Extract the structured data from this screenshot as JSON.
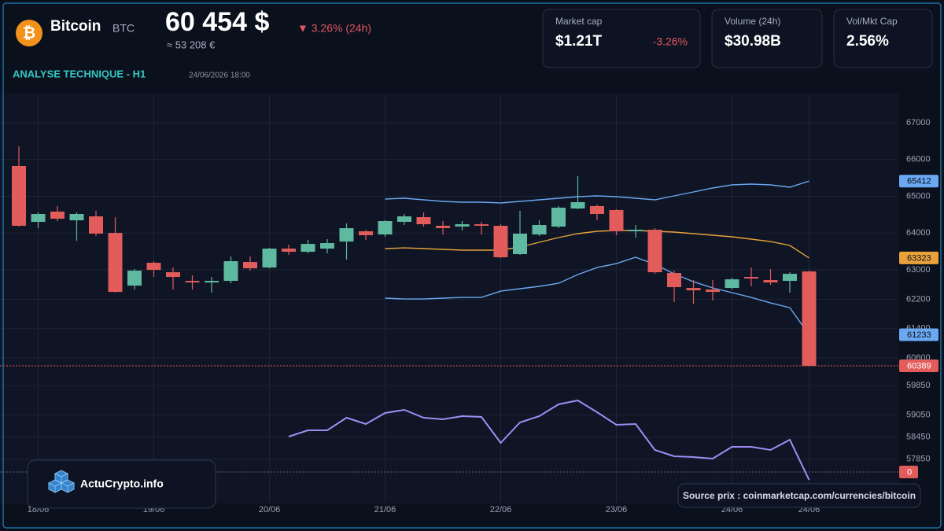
{
  "header": {
    "logo": "₿",
    "name": "Bitcoin",
    "symbol": "BTC",
    "price": "60 454 $",
    "price_eur": "≈ 53 208 €",
    "change": "▼ 3.26% (24h)",
    "section": "ANALYSE TECHNIQUE - H1",
    "datetime": "24/06/2026 18:00"
  },
  "cards": [
    {
      "label": "Market cap",
      "value": "$1.21T",
      "change": "-3.26%"
    },
    {
      "label": "Volume (24h)",
      "value": "$30.98B"
    },
    {
      "label": "Vol/Mkt Cap",
      "value": "2.56%"
    }
  ],
  "footer": {
    "brand": "ActuCrypto.info",
    "source": "Source prix : coinmarketcap.com/currencies/bitcoin"
  },
  "chart_data": {
    "type": "candlestick",
    "categories": [
      null,
      "18/06",
      null,
      null,
      null,
      null,
      null,
      "19/06",
      null,
      null,
      null,
      null,
      null,
      "20/06",
      null,
      null,
      null,
      null,
      null,
      "21/06",
      null,
      null,
      null,
      null,
      null,
      "22/06",
      null,
      null,
      null,
      null,
      null,
      "23/06",
      null,
      null,
      null,
      null,
      null,
      "24/06",
      null,
      null,
      null,
      "24/06"
    ],
    "open": [
      65823,
      64304,
      64582,
      64346,
      64453,
      64004,
      62570,
      63191,
      62934,
      62699,
      62656,
      62699,
      63212,
      63062,
      63576,
      63490,
      63576,
      63768,
      64047,
      63961,
      64304,
      64432,
      64197,
      64176,
      64239,
      64197,
      63426,
      63961,
      64175,
      64667,
      64732,
      64625,
      64047,
      64090,
      62913,
      62506,
      62463,
      62506,
      62806,
      62720,
      62699,
      62955
    ],
    "high": [
      66358,
      64561,
      64732,
      64561,
      64603,
      64432,
      63020,
      63234,
      63062,
      62848,
      62806,
      63362,
      63362,
      63597,
      63683,
      63811,
      63833,
      64261,
      64090,
      64346,
      64518,
      64561,
      64325,
      64325,
      64304,
      64239,
      64603,
      64346,
      64732,
      65545,
      64774,
      64646,
      64218,
      64132,
      62977,
      62720,
      62720,
      62784,
      63062,
      63020,
      62934,
      62977
    ],
    "low": [
      64176,
      64132,
      64325,
      63790,
      63918,
      62378,
      62463,
      62806,
      62463,
      62463,
      62378,
      62634,
      62977,
      63041,
      63405,
      63448,
      63448,
      63277,
      63811,
      63897,
      64218,
      64176,
      63961,
      64068,
      63961,
      63319,
      63405,
      63918,
      64132,
      64646,
      64346,
      63940,
      63876,
      62891,
      62121,
      62079,
      62164,
      62463,
      62549,
      62591,
      62378,
      60368
    ],
    "close": [
      64197,
      64518,
      64389,
      64518,
      63983,
      62399,
      62977,
      62998,
      62806,
      62656,
      62699,
      63234,
      63041,
      63576,
      63490,
      63704,
      63726,
      64132,
      63940,
      64325,
      64453,
      64239,
      64133,
      64239,
      64197,
      63341,
      63983,
      64218,
      64689,
      64839,
      64518,
      64047,
      64090,
      62934,
      62528,
      62442,
      62399,
      62741,
      62763,
      62656,
      62891,
      60389
    ],
    "up_color": "#5fb9a0",
    "down_color": "#e25c5c",
    "series": [
      {
        "color": "#6aa8f2",
        "values": [
          null,
          null,
          null,
          null,
          null,
          null,
          null,
          null,
          null,
          null,
          null,
          null,
          null,
          null,
          null,
          null,
          null,
          null,
          null,
          64924,
          64946,
          64903,
          64860,
          64839,
          64839,
          64817,
          64860,
          64903,
          64946,
          64988,
          65010,
          64988,
          64946,
          64903,
          65010,
          65117,
          65224,
          65309,
          65331,
          65309,
          65245,
          65412
        ]
      },
      {
        "color": "#e9a23b",
        "values": [
          null,
          null,
          null,
          null,
          null,
          null,
          null,
          null,
          null,
          null,
          null,
          null,
          null,
          null,
          null,
          null,
          null,
          null,
          null,
          63576,
          63597,
          63576,
          63555,
          63533,
          63533,
          63533,
          63619,
          63747,
          63876,
          63983,
          64047,
          64068,
          64068,
          64047,
          64025,
          63983,
          63940,
          63897,
          63833,
          63768,
          63662,
          63323
        ]
      },
      {
        "color": "#6aa8f2",
        "values": [
          null,
          null,
          null,
          null,
          null,
          null,
          null,
          null,
          null,
          null,
          null,
          null,
          null,
          null,
          null,
          null,
          null,
          null,
          null,
          62228,
          62206,
          62206,
          62228,
          62249,
          62249,
          62420,
          62485,
          62549,
          62634,
          62870,
          63062,
          63169,
          63341,
          63148,
          62891,
          62677,
          62506,
          62378,
          62249,
          62099,
          61971,
          61233
        ]
      },
      {
        "color": "#9d8df4",
        "axis": "y2",
        "values": [
          null,
          null,
          null,
          null,
          null,
          null,
          null,
          null,
          null,
          null,
          null,
          null,
          null,
          null,
          45,
          53,
          53,
          69,
          61,
          75,
          79,
          69,
          67,
          71,
          70,
          37,
          63,
          71,
          86,
          91,
          76,
          60,
          61,
          28,
          20,
          19,
          17,
          32,
          32,
          28,
          41,
          -10
        ]
      }
    ],
    "ylim": [
      56645,
      67770
    ],
    "yticks": [
      67000,
      66000,
      65000,
      64000,
      63000,
      62200,
      61400,
      60600,
      59850,
      59050,
      58450,
      57850
    ],
    "y2lim": [
      -40,
      480
    ],
    "y2ticks": [
      0
    ],
    "grid": true
  }
}
